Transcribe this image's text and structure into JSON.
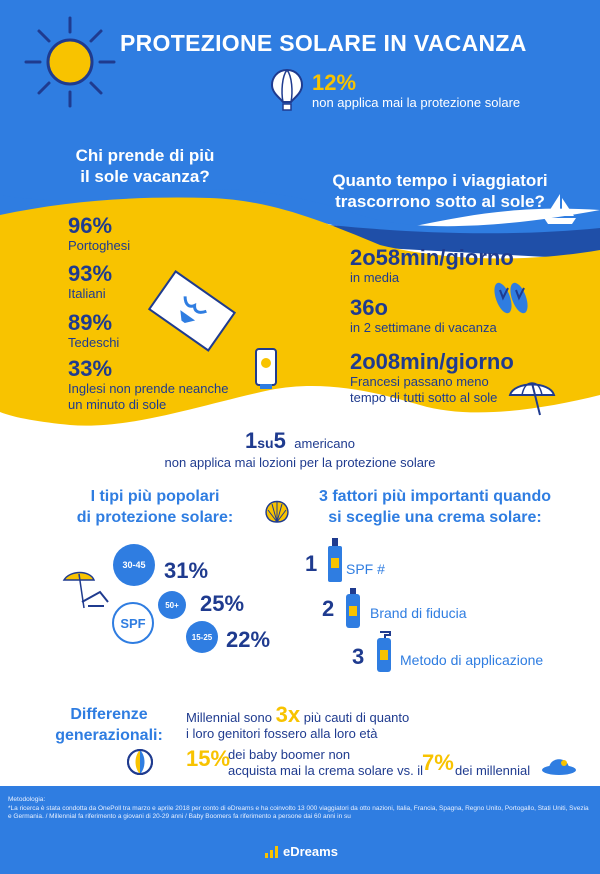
{
  "title": "PROTEZIONE SOLARE IN VACANZA",
  "never_apply": {
    "value": "12%",
    "text": "non applica mai la protezione solare"
  },
  "who_sun": {
    "title_line1": "Chi prende di più",
    "title_line2": "il sole vacanza?",
    "items": [
      {
        "value": "96%",
        "label": "Portoghesi"
      },
      {
        "value": "93%",
        "label": "Italiani"
      },
      {
        "value": "89%",
        "label": "Tedeschi"
      },
      {
        "value": "33%",
        "label_line1": "Inglesi non prende neanche",
        "label_line2": "un minuto di sole"
      }
    ]
  },
  "time_sun": {
    "title_line1": "Quanto tempo i viaggiatori",
    "title_line2": "trascorrono sotto al sole?",
    "items": [
      {
        "value": "2o58min/giorno",
        "label": "in media"
      },
      {
        "value": "36o",
        "label": "in 2 settimane di vacanza"
      },
      {
        "value": "2o08min/giorno",
        "label_line1": "Francesi passano meno",
        "label_line2": "tempo di tutti sotto al sole"
      }
    ]
  },
  "american": {
    "num1": "1",
    "su": "su",
    "num2": "5",
    "word": "americano",
    "text": "non applica mai lozioni per la protezione solare"
  },
  "types": {
    "title_line1": "I tipi più popolari",
    "title_line2": "di protezione solare:",
    "spf_label": "SPF",
    "items": [
      {
        "range": "30-45",
        "value": "31%"
      },
      {
        "range": "50+",
        "value": "25%"
      },
      {
        "range": "15-25",
        "value": "22%"
      }
    ]
  },
  "factors": {
    "title_line1": "3 fattori più importanti quando",
    "title_line2": "si sceglie una crema solare:",
    "items": [
      {
        "num": "1",
        "label": "SPF #"
      },
      {
        "num": "2",
        "label": "Brand di fiducia"
      },
      {
        "num": "3",
        "label": "Metodo di applicazione"
      }
    ]
  },
  "generations": {
    "title_line1": "Differenze",
    "title_line2": "generazionali:",
    "line1_pre": "Millennial sono",
    "line1_big": "3x",
    "line1_post": "più cauti di quanto",
    "line2": "i loro genitori fossero alla loro età",
    "bb_value": "15%",
    "bb_text_line1": "dei baby boomer non",
    "bb_text_line2_pre": "acquista mai la crema solare vs. il",
    "mil_value": "7%",
    "mil_text": "dei millennial"
  },
  "footer": {
    "meth_title": "Metodologia:",
    "meth_text": "*La ricerca è stata condotta da OnePoll tra marzo e aprile 2018 per conto di eDreams e ha coinvolto 13 000 viaggiatori da otto nazioni, Italia, Francia, Spagna, Regno Unito, Portogallo, Stati Uniti, Svezia e Germania. / Millennial fa riferimento a giovani di 20-29 anni / Baby Boomers fa riferimento a persone dai 60 anni in su",
    "brand": "eDreams"
  },
  "colors": {
    "blue": "#2f7de1",
    "navy": "#1f3b8f",
    "yellow": "#f8c300",
    "sea": "#1f4fa8"
  }
}
